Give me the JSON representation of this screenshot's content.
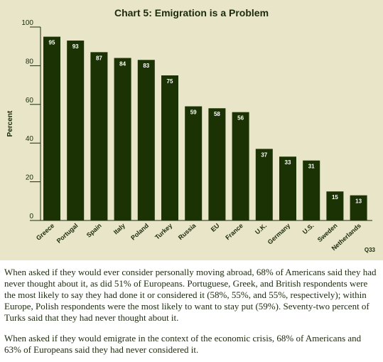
{
  "chart_data": {
    "type": "bar",
    "title": "Chart 5: Emigration is a Problem",
    "ylabel": "Percent",
    "xlabel": "",
    "ylim": [
      0,
      100
    ],
    "yticks": [
      0,
      20,
      40,
      60,
      80,
      100
    ],
    "categories": [
      "Greece",
      "Portugal",
      "Spain",
      "Italy",
      "Poland",
      "Turkey",
      "Russia",
      "EU",
      "France",
      "U.K.",
      "Germany",
      "U.S.",
      "Sweden",
      "Netherlands"
    ],
    "values": [
      95,
      93,
      87,
      84,
      83,
      75,
      59,
      58,
      56,
      37,
      33,
      31,
      15,
      13
    ],
    "note": "Q33",
    "bar_color": "#1b3304",
    "background_color": "#e8e5c8",
    "grid": false
  },
  "paragraphs": [
    "When asked if they would ever consider personally moving abroad, 68% of Americans said they had never thought about it, as did 51% of Europeans. Portuguese, Greek, and British respondents were the most likely to say they had done it or considered it (58%, 55%, and 55%, respectively); within Europe, Polish respondents were the most likely to want to stay put (59%). Seventy-two percent of Turks said that they had never thought about it.",
    "When asked if they would emigrate in the context of the economic crisis, 68% of Americans and 63% of Europeans said they had never considered it."
  ]
}
